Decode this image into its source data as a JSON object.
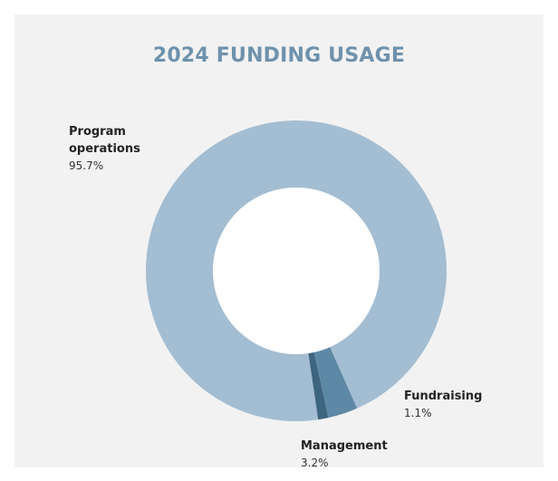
{
  "chart_data": {
    "type": "pie",
    "title": "2024 FUNDING USAGE",
    "categories": [
      "Program operations",
      "Management",
      "Fundraising"
    ],
    "values": [
      95.7,
      3.2,
      1.1
    ],
    "value_labels": [
      "95.7%",
      "3.2%",
      "1.1%"
    ],
    "donut": true,
    "colors": [
      "#a3bdd2",
      "#5e89a6",
      "#3e6580"
    ],
    "background": "#f2f2f2",
    "title_color": "#6e92ad"
  }
}
